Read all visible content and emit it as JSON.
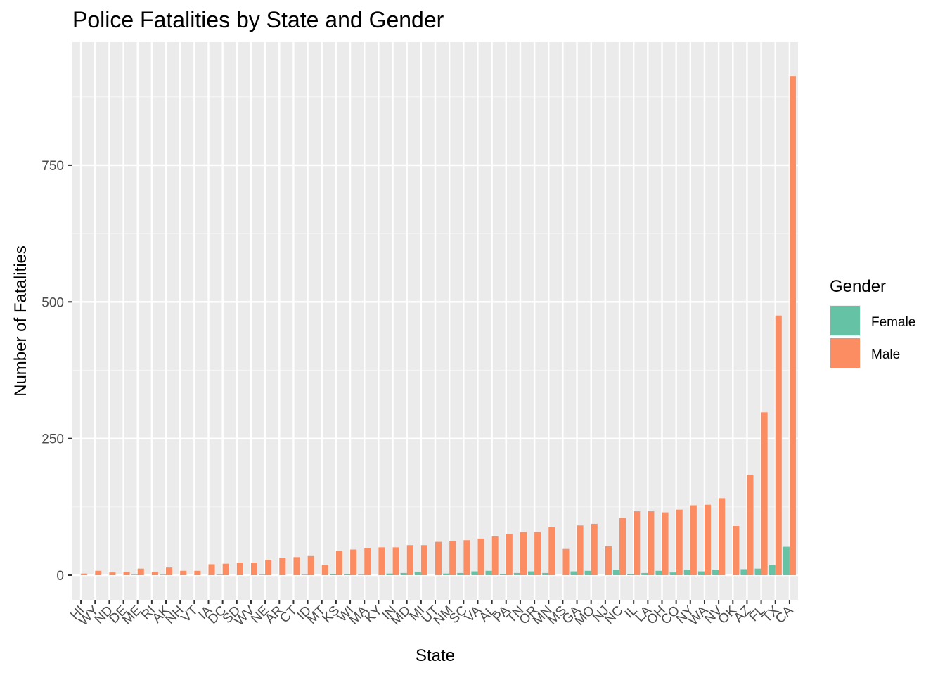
{
  "chart_data": {
    "type": "bar",
    "title": "Police Fatalities by State and Gender",
    "xlabel": "State",
    "ylabel": "Number of Fatalities",
    "ylim": [
      -45,
      975
    ],
    "yticks": [
      0,
      250,
      500,
      750
    ],
    "grid": true,
    "legend": {
      "title": "Gender",
      "placement": "right"
    },
    "categories": [
      "HI",
      "WY",
      "ND",
      "DE",
      "ME",
      "RI",
      "AK",
      "NH",
      "VT",
      "IA",
      "DC",
      "SD",
      "WV",
      "NE",
      "AR",
      "CT",
      "ID",
      "MT",
      "KS",
      "WI",
      "MA",
      "KY",
      "IN",
      "MD",
      "MI",
      "UT",
      "NM",
      "SC",
      "VA",
      "AL",
      "PA",
      "TN",
      "OR",
      "MN",
      "MS",
      "GA",
      "MO",
      "NJ",
      "NC",
      "IL",
      "LA",
      "OH",
      "CO",
      "NY",
      "WA",
      "NV",
      "OK",
      "AZ",
      "FL",
      "TX",
      "CA"
    ],
    "series": [
      {
        "name": "Female",
        "color": "#66C2A5",
        "values": [
          0,
          0,
          0,
          0,
          1,
          0,
          1,
          0,
          0,
          0,
          1,
          0,
          0,
          1,
          0,
          0,
          1,
          0,
          2,
          2,
          1,
          0,
          3,
          4,
          6,
          0,
          3,
          4,
          7,
          8,
          2,
          4,
          7,
          4,
          0,
          7,
          8,
          0,
          10,
          2,
          4,
          8,
          5,
          10,
          7,
          10,
          0,
          11,
          12,
          19,
          52
        ]
      },
      {
        "name": "Male",
        "color": "#FC8D62",
        "values": [
          3,
          8,
          5,
          6,
          12,
          6,
          14,
          8,
          8,
          20,
          21,
          23,
          23,
          28,
          32,
          33,
          35,
          19,
          44,
          47,
          49,
          51,
          51,
          55,
          55,
          61,
          63,
          64,
          67,
          71,
          75,
          79,
          79,
          88,
          48,
          91,
          94,
          53,
          105,
          117,
          117,
          115,
          120,
          128,
          129,
          141,
          90,
          184,
          298,
          475,
          913
        ]
      }
    ]
  }
}
